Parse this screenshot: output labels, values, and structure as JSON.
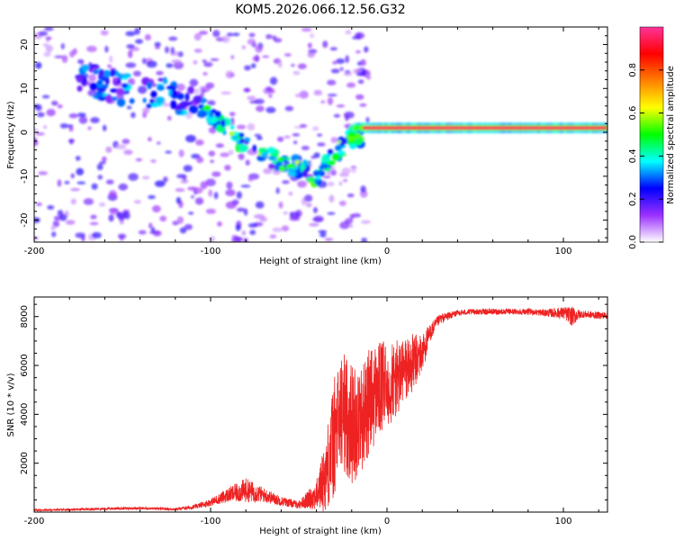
{
  "figure_title": "KOM5.2026.066.12.56.G32",
  "chart_data": [
    {
      "type": "heatmap",
      "title": "KOM5.2026.066.12.56.G32",
      "xlabel": "Height of straight line (km)",
      "ylabel": "Frequency (Hz)",
      "xlim": [
        -200,
        125
      ],
      "ylim": [
        -25,
        24
      ],
      "xticks": [
        -200,
        -100,
        0,
        100
      ],
      "xtick_labels": [
        "-200",
        "-100",
        "0",
        "100"
      ],
      "yticks": [
        -20,
        -10,
        0,
        10,
        20
      ],
      "ytick_labels": [
        "-20",
        "-10",
        "0",
        "10",
        "20"
      ],
      "colorbar": {
        "label": "Normalized spectral amplitude",
        "range": [
          0,
          1
        ],
        "ticks": [
          0,
          0.2,
          0.4,
          0.6,
          0.8
        ],
        "tick_labels": [
          "0.0",
          "0.2",
          "0.4",
          "0.6",
          "0.8"
        ],
        "colors": [
          "#ffffff",
          "#9b30ff",
          "#0000ff",
          "#00ffff",
          "#00ff00",
          "#ffff00",
          "#ff8000",
          "#ff0000",
          "#ff3399"
        ]
      },
      "features": [
        {
          "name": "coherent_line",
          "x_range": [
            -18,
            125
          ],
          "frequency_hz": 1.0,
          "amplitude": 0.95
        },
        {
          "name": "descending_trace",
          "points": [
            [
              -170,
              12
            ],
            [
              -150,
              10
            ],
            [
              -130,
              9
            ],
            [
              -110,
              7
            ],
            [
              -100,
              4
            ],
            [
              -90,
              0
            ],
            [
              -80,
              -3
            ],
            [
              -70,
              -5
            ],
            [
              -60,
              -7
            ],
            [
              -50,
              -8
            ],
            [
              -40,
              -10
            ],
            [
              -30,
              -5
            ],
            [
              -20,
              -1
            ]
          ]
        }
      ]
    },
    {
      "type": "line",
      "xlabel": "Height of straight line (km)",
      "ylabel": "SNR (10 * v/v)",
      "xlim": [
        -200,
        125
      ],
      "ylim": [
        0,
        8800
      ],
      "xticks": [
        -200,
        -100,
        0,
        100
      ],
      "xtick_labels": [
        "-200",
        "-100",
        "0",
        "100"
      ],
      "yticks": [
        2000,
        4000,
        6000,
        8000
      ],
      "ytick_labels": [
        "2000",
        "4000",
        "6000",
        "8000"
      ],
      "series": [
        {
          "name": "SNR",
          "color": "#ee2222",
          "x": [
            -200,
            -180,
            -160,
            -140,
            -120,
            -110,
            -100,
            -90,
            -80,
            -70,
            -60,
            -50,
            -40,
            -35,
            -30,
            -25,
            -20,
            -15,
            -10,
            -5,
            0,
            5,
            10,
            15,
            20,
            25,
            30,
            40,
            50,
            60,
            70,
            80,
            90,
            100,
            105,
            110,
            120,
            125
          ],
          "values": [
            80,
            100,
            140,
            160,
            120,
            200,
            400,
            700,
            900,
            700,
            450,
            300,
            700,
            1500,
            3000,
            4200,
            3600,
            3800,
            4500,
            5000,
            5200,
            5400,
            5800,
            6100,
            6500,
            7400,
            7900,
            8150,
            8200,
            8200,
            8200,
            8200,
            8150,
            8150,
            8000,
            8100,
            8050,
            8050
          ],
          "noise": [
            40,
            40,
            50,
            50,
            50,
            80,
            150,
            300,
            500,
            300,
            200,
            150,
            600,
            1500,
            2500,
            2500,
            2500,
            2200,
            2200,
            2000,
            1800,
            1600,
            1400,
            1200,
            800,
            350,
            200,
            120,
            120,
            120,
            120,
            120,
            150,
            250,
            400,
            150,
            150,
            150
          ]
        }
      ]
    }
  ]
}
